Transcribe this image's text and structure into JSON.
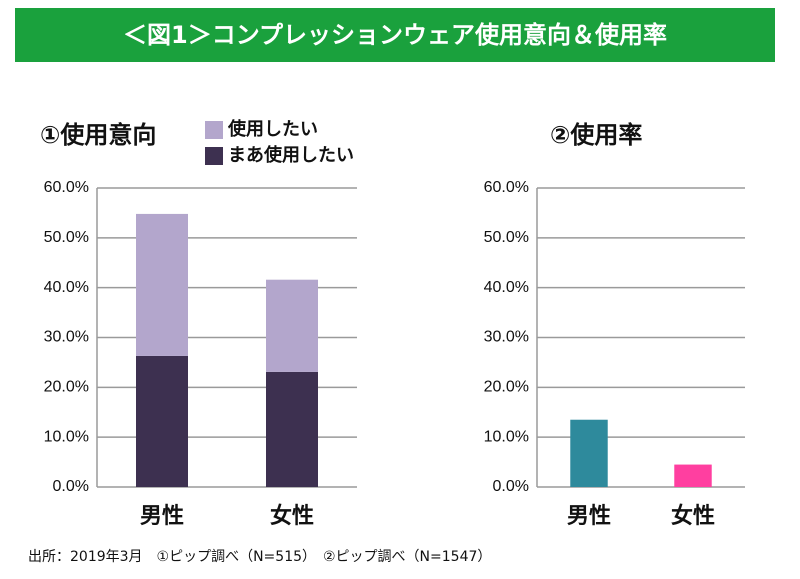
{
  "title": "＜図1＞コンプレッションウェア使用意向＆使用率",
  "source": "出所：2019年3月　①ピップ調べ（N=515）　②ピップ調べ（N=1547）",
  "chart_data": [
    {
      "type": "bar",
      "stacked": true,
      "title": "①使用意向",
      "categories": [
        "男性",
        "女性"
      ],
      "series": [
        {
          "name": "使用したい",
          "color": "#b3a6cc",
          "values": [
            28.5,
            18.5
          ]
        },
        {
          "name": "まあ使用したい",
          "color": "#3d3050",
          "values": [
            26.3,
            23.1
          ]
        }
      ],
      "ylim": [
        0,
        60
      ],
      "yticks": [
        {
          "value": 0,
          "label": "0.0%"
        },
        {
          "value": 10,
          "label": "10.0%"
        },
        {
          "value": 20,
          "label": "20.0%"
        },
        {
          "value": 30,
          "label": "30.0%"
        },
        {
          "value": 40,
          "label": "40.0%"
        },
        {
          "value": 50,
          "label": "50.0%"
        },
        {
          "value": 60,
          "label": "60.0%"
        }
      ],
      "grid": true,
      "legend": "top"
    },
    {
      "type": "bar",
      "title": "②使用率",
      "categories": [
        "男性",
        "女性"
      ],
      "values": [
        13.5,
        4.5
      ],
      "colors": [
        "#2e8a9c",
        "#ff3fa0"
      ],
      "ylim": [
        0,
        60
      ],
      "yticks": [
        {
          "value": 0,
          "label": "0.0%"
        },
        {
          "value": 10,
          "label": "10.0%"
        },
        {
          "value": 20,
          "label": "20.0%"
        },
        {
          "value": 30,
          "label": "30.0%"
        },
        {
          "value": 40,
          "label": "40.0%"
        },
        {
          "value": 50,
          "label": "50.0%"
        },
        {
          "value": 60,
          "label": "60.0%"
        }
      ],
      "grid": true
    }
  ]
}
